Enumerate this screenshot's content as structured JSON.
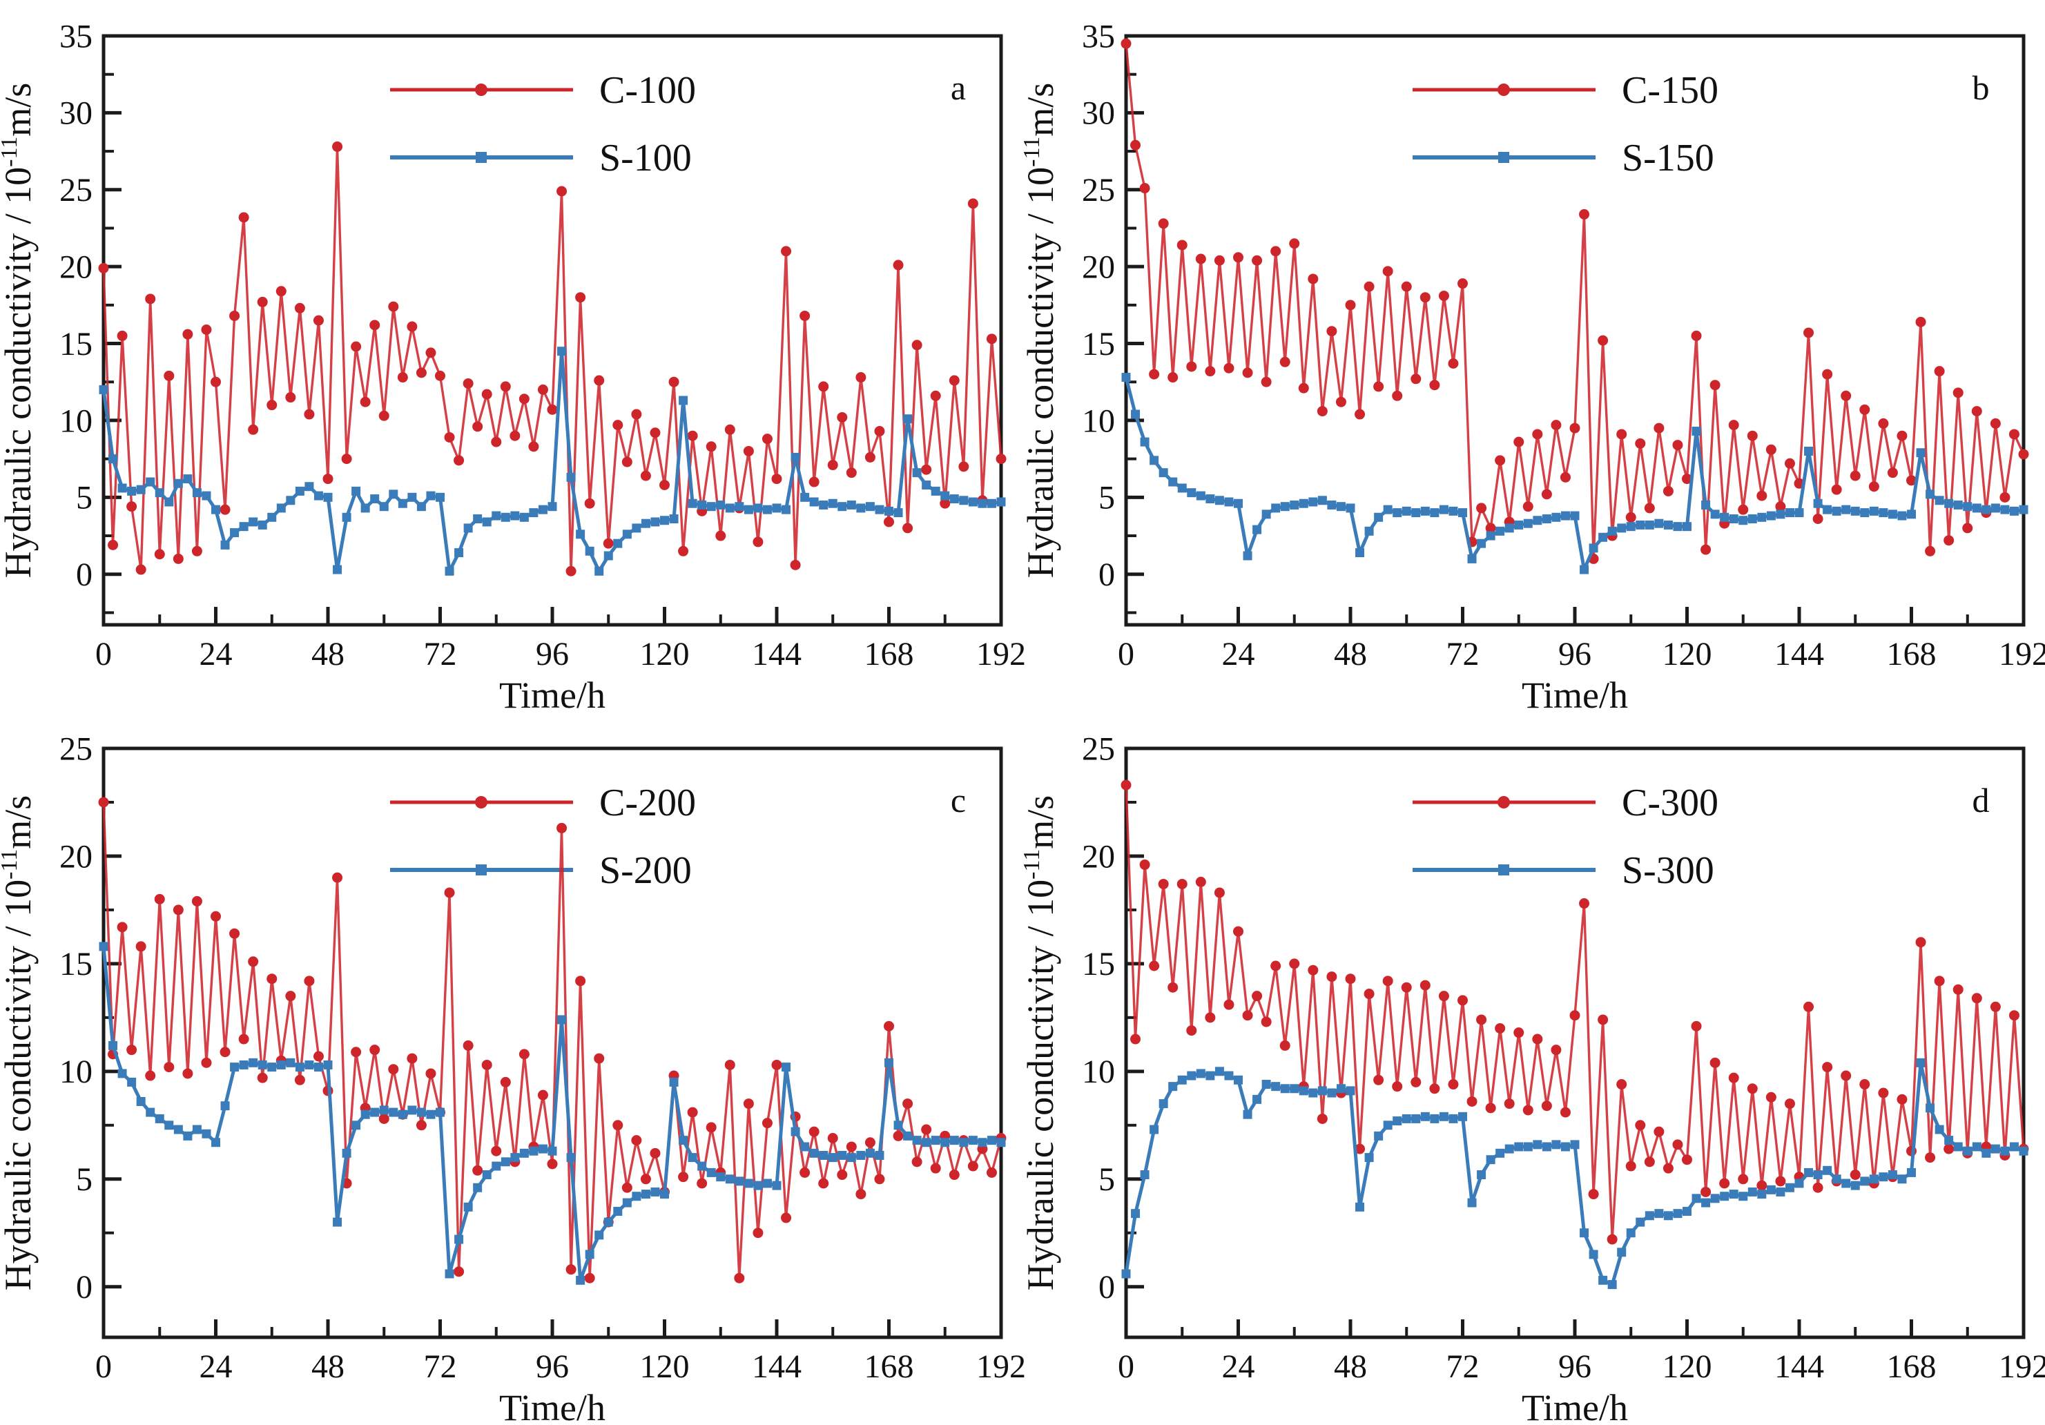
{
  "figure": {
    "xlabel": "Time/h",
    "ylabel_prefix": "Hydraulic conductivity / 10",
    "ylabel_superscript": "-11",
    "ylabel_suffix": "m/s",
    "colors": {
      "c_series": "#ce252b",
      "s_series": "#3a7cba",
      "axis": "#1b1b1b",
      "text": "#111111",
      "background": "#ffffff"
    },
    "x_ticks": [
      0,
      24,
      48,
      72,
      96,
      120,
      144,
      168,
      192
    ],
    "x_minor_step": 12,
    "y_minor_step": 2.5
  },
  "chart_data": [
    {
      "type": "line",
      "panel_label": "a",
      "xlabel": "Time/h",
      "xlim": [
        0,
        192
      ],
      "ylim": [
        0,
        35
      ],
      "y_ticks": [
        0,
        5,
        10,
        15,
        20,
        25,
        30,
        35
      ],
      "x_ticks": [
        0,
        24,
        48,
        72,
        96,
        120,
        144,
        168,
        192
      ],
      "legend": [
        {
          "label": "C-100",
          "color_key": "c_series"
        },
        {
          "label": "S-100",
          "color_key": "s_series"
        }
      ],
      "series": [
        {
          "name": "C-100",
          "color_key": "c_series",
          "marker": "circle",
          "x_start": 0,
          "x_step": 2,
          "values": [
            19.9,
            1.9,
            15.5,
            4.4,
            0.3,
            17.9,
            1.3,
            12.9,
            1.0,
            15.6,
            1.5,
            15.9,
            12.5,
            4.2,
            16.8,
            23.2,
            9.4,
            17.7,
            11.0,
            18.4,
            11.5,
            17.3,
            10.4,
            16.5,
            6.2,
            27.8,
            7.5,
            14.8,
            11.2,
            16.2,
            10.3,
            17.4,
            12.8,
            16.1,
            13.1,
            14.4,
            12.9,
            8.9,
            7.4,
            12.4,
            9.6,
            11.7,
            8.6,
            12.2,
            9.0,
            11.4,
            8.3,
            12.0,
            10.7,
            24.9,
            0.2,
            18.0,
            4.6,
            12.6,
            2.0,
            9.7,
            7.3,
            10.4,
            6.4,
            9.2,
            5.8,
            12.5,
            1.5,
            9.0,
            4.1,
            8.3,
            2.5,
            9.4,
            4.3,
            8.0,
            2.1,
            8.8,
            6.2,
            21.0,
            0.6,
            16.8,
            6.0,
            12.2,
            7.1,
            10.2,
            6.6,
            12.8,
            7.6,
            9.3,
            3.4,
            20.1,
            3.0,
            14.9,
            6.8,
            11.6,
            4.6,
            12.6,
            7.0,
            24.1,
            4.8,
            15.3,
            7.5
          ]
        },
        {
          "name": "S-100",
          "color_key": "s_series",
          "marker": "square",
          "x_start": 0,
          "x_step": 2,
          "values": [
            12.0,
            7.5,
            5.6,
            5.4,
            5.5,
            6.0,
            5.3,
            4.7,
            5.9,
            6.2,
            5.3,
            5.1,
            4.2,
            1.9,
            2.7,
            3.1,
            3.4,
            3.2,
            3.7,
            4.3,
            4.8,
            5.4,
            5.7,
            5.1,
            5.0,
            0.3,
            3.7,
            5.4,
            4.3,
            4.9,
            4.4,
            5.2,
            4.6,
            5.0,
            4.4,
            5.1,
            5.0,
            0.2,
            1.4,
            3.0,
            3.6,
            3.4,
            3.8,
            3.7,
            3.8,
            3.7,
            4.0,
            4.2,
            4.4,
            14.5,
            6.3,
            2.6,
            1.5,
            0.2,
            1.2,
            2.0,
            2.6,
            3.0,
            3.3,
            3.4,
            3.5,
            3.6,
            11.3,
            4.6,
            4.5,
            4.4,
            4.5,
            4.3,
            4.4,
            4.2,
            4.3,
            4.2,
            4.3,
            4.2,
            7.6,
            5.0,
            4.7,
            4.5,
            4.6,
            4.4,
            4.5,
            4.3,
            4.4,
            4.2,
            4.1,
            4.0,
            10.1,
            6.6,
            5.8,
            5.4,
            5.1,
            4.9,
            4.8,
            4.7,
            4.6,
            4.6,
            4.7
          ]
        }
      ]
    },
    {
      "type": "line",
      "panel_label": "b",
      "xlabel": "Time/h",
      "xlim": [
        0,
        192
      ],
      "ylim": [
        0,
        35
      ],
      "y_ticks": [
        0,
        5,
        10,
        15,
        20,
        25,
        30,
        35
      ],
      "x_ticks": [
        0,
        24,
        48,
        72,
        96,
        120,
        144,
        168,
        192
      ],
      "legend": [
        {
          "label": "C-150",
          "color_key": "c_series"
        },
        {
          "label": "S-150",
          "color_key": "s_series"
        }
      ],
      "series": [
        {
          "name": "C-150",
          "color_key": "c_series",
          "marker": "circle",
          "x_start": 0,
          "x_step": 2,
          "values": [
            34.5,
            27.9,
            25.1,
            13.0,
            22.8,
            12.8,
            21.4,
            13.5,
            20.5,
            13.2,
            20.4,
            13.4,
            20.6,
            13.1,
            20.4,
            12.5,
            21.0,
            13.8,
            21.5,
            12.1,
            19.2,
            10.6,
            15.8,
            11.2,
            17.5,
            10.4,
            18.7,
            12.2,
            19.7,
            11.6,
            18.7,
            12.7,
            18.0,
            12.3,
            18.1,
            13.7,
            18.9,
            2.1,
            4.3,
            3.0,
            7.4,
            3.4,
            8.6,
            4.4,
            9.1,
            5.2,
            9.7,
            6.3,
            9.5,
            23.4,
            1.0,
            15.2,
            2.5,
            9.1,
            3.7,
            8.5,
            4.3,
            9.5,
            5.4,
            8.4,
            6.2,
            15.5,
            1.6,
            12.3,
            3.3,
            9.7,
            4.2,
            9.0,
            5.1,
            8.1,
            4.4,
            7.2,
            5.9,
            15.7,
            3.6,
            13.0,
            5.5,
            11.6,
            6.4,
            10.7,
            5.7,
            9.8,
            6.6,
            9.0,
            6.1,
            16.4,
            1.5,
            13.2,
            2.2,
            11.8,
            3.0,
            10.6,
            4.0,
            9.8,
            5.0,
            9.1,
            7.8
          ]
        },
        {
          "name": "S-150",
          "color_key": "s_series",
          "marker": "square",
          "x_start": 0,
          "x_step": 2,
          "values": [
            12.8,
            10.4,
            8.6,
            7.4,
            6.6,
            6.0,
            5.6,
            5.3,
            5.1,
            4.9,
            4.8,
            4.7,
            4.6,
            1.2,
            2.9,
            3.9,
            4.3,
            4.4,
            4.5,
            4.6,
            4.7,
            4.8,
            4.5,
            4.4,
            4.3,
            1.4,
            2.8,
            3.7,
            4.2,
            4.0,
            4.1,
            4.0,
            4.1,
            4.0,
            4.2,
            4.1,
            4.0,
            1.0,
            2.0,
            2.5,
            2.8,
            3.0,
            3.2,
            3.3,
            3.5,
            3.6,
            3.7,
            3.8,
            3.8,
            0.3,
            1.7,
            2.4,
            2.8,
            3.0,
            3.1,
            3.2,
            3.2,
            3.3,
            3.2,
            3.1,
            3.1,
            9.3,
            4.5,
            3.9,
            3.7,
            3.6,
            3.5,
            3.6,
            3.7,
            3.8,
            3.9,
            4.0,
            4.0,
            8.0,
            4.6,
            4.2,
            4.1,
            4.2,
            4.1,
            4.0,
            4.1,
            4.0,
            3.9,
            3.8,
            3.9,
            7.9,
            5.2,
            4.8,
            4.6,
            4.5,
            4.4,
            4.3,
            4.2,
            4.3,
            4.2,
            4.1,
            4.2
          ]
        }
      ]
    },
    {
      "type": "line",
      "panel_label": "c",
      "xlabel": "Time/h",
      "xlim": [
        0,
        192
      ],
      "ylim": [
        0,
        25
      ],
      "y_ticks": [
        0,
        5,
        10,
        15,
        20,
        25
      ],
      "x_ticks": [
        0,
        24,
        48,
        72,
        96,
        120,
        144,
        168,
        192
      ],
      "legend": [
        {
          "label": "C-200",
          "color_key": "c_series"
        },
        {
          "label": "S-200",
          "color_key": "s_series"
        }
      ],
      "series": [
        {
          "name": "C-200",
          "color_key": "c_series",
          "marker": "circle",
          "x_start": 0,
          "x_step": 2,
          "values": [
            22.5,
            10.8,
            16.7,
            11.0,
            15.8,
            9.8,
            18.0,
            10.2,
            17.5,
            9.9,
            17.9,
            10.4,
            17.2,
            10.9,
            16.4,
            11.5,
            15.1,
            9.7,
            14.3,
            10.5,
            13.5,
            9.6,
            14.2,
            10.7,
            9.1,
            19.0,
            4.8,
            10.9,
            8.3,
            11.0,
            7.8,
            10.1,
            8.0,
            10.6,
            7.5,
            9.9,
            8.1,
            18.3,
            0.7,
            11.2,
            5.4,
            10.3,
            6.3,
            9.5,
            5.8,
            10.8,
            6.5,
            8.9,
            5.7,
            21.3,
            0.8,
            14.2,
            0.4,
            10.6,
            3.0,
            7.5,
            4.6,
            6.8,
            5.0,
            6.2,
            4.4,
            9.8,
            5.1,
            8.1,
            4.8,
            7.4,
            5.3,
            10.3,
            0.4,
            8.5,
            2.5,
            7.6,
            10.3,
            3.2,
            7.9,
            5.3,
            7.2,
            4.8,
            6.9,
            5.2,
            6.5,
            4.3,
            6.7,
            5.0,
            12.1,
            7.0,
            8.5,
            5.8,
            7.3,
            5.5,
            7.0,
            5.2,
            6.8,
            5.6,
            6.4,
            5.3,
            6.9
          ]
        },
        {
          "name": "S-200",
          "color_key": "s_series",
          "marker": "square",
          "x_start": 0,
          "x_step": 2,
          "values": [
            15.8,
            11.2,
            9.9,
            9.5,
            8.6,
            8.1,
            7.8,
            7.5,
            7.3,
            7.0,
            7.3,
            7.1,
            6.7,
            8.4,
            10.2,
            10.3,
            10.4,
            10.3,
            10.2,
            10.3,
            10.4,
            10.2,
            10.3,
            10.2,
            10.3,
            3.0,
            6.2,
            7.5,
            8.0,
            8.1,
            8.2,
            8.1,
            8.0,
            8.2,
            8.1,
            8.0,
            8.1,
            0.6,
            2.2,
            3.7,
            4.6,
            5.2,
            5.6,
            5.8,
            6.0,
            6.2,
            6.3,
            6.4,
            6.3,
            12.4,
            6.0,
            0.3,
            1.5,
            2.4,
            3.0,
            3.5,
            3.9,
            4.2,
            4.3,
            4.4,
            4.3,
            9.5,
            6.8,
            6.0,
            5.6,
            5.3,
            5.1,
            5.0,
            4.9,
            4.8,
            4.7,
            4.8,
            4.7,
            10.2,
            7.2,
            6.5,
            6.2,
            6.1,
            6.0,
            6.1,
            6.0,
            6.1,
            6.2,
            6.1,
            10.4,
            7.5,
            7.0,
            6.8,
            6.7,
            6.8,
            6.7,
            6.8,
            6.7,
            6.8,
            6.7,
            6.8,
            6.7
          ]
        }
      ]
    },
    {
      "type": "line",
      "panel_label": "d",
      "xlabel": "Time/h",
      "xlim": [
        0,
        192
      ],
      "ylim": [
        0,
        25
      ],
      "y_ticks": [
        0,
        5,
        10,
        15,
        20,
        25
      ],
      "x_ticks": [
        0,
        24,
        48,
        72,
        96,
        120,
        144,
        168,
        192
      ],
      "legend": [
        {
          "label": "C-300",
          "color_key": "c_series"
        },
        {
          "label": "S-300",
          "color_key": "s_series"
        }
      ],
      "series": [
        {
          "name": "C-300",
          "color_key": "c_series",
          "marker": "circle",
          "x_start": 0,
          "x_step": 2,
          "values": [
            23.3,
            11.5,
            19.6,
            14.9,
            18.7,
            13.9,
            18.7,
            11.9,
            18.8,
            12.5,
            18.3,
            13.1,
            16.5,
            12.6,
            13.5,
            12.3,
            14.9,
            11.2,
            15.0,
            9.3,
            14.7,
            7.8,
            14.4,
            9.0,
            14.3,
            6.4,
            13.6,
            9.6,
            14.2,
            9.3,
            13.9,
            9.5,
            14.0,
            9.2,
            13.5,
            9.4,
            13.3,
            8.6,
            12.4,
            8.3,
            12.0,
            8.5,
            11.8,
            8.2,
            11.5,
            8.4,
            11.0,
            8.1,
            12.6,
            17.8,
            4.3,
            12.4,
            2.2,
            9.4,
            5.6,
            7.5,
            5.8,
            7.2,
            5.5,
            6.6,
            5.9,
            12.1,
            4.4,
            10.4,
            4.8,
            9.7,
            5.0,
            9.2,
            4.7,
            8.8,
            4.9,
            8.5,
            5.1,
            13.0,
            4.6,
            10.2,
            4.9,
            9.8,
            5.2,
            9.4,
            4.8,
            9.0,
            5.1,
            8.7,
            6.3,
            16.0,
            6.0,
            14.2,
            6.4,
            13.8,
            6.2,
            13.4,
            6.5,
            13.0,
            6.1,
            12.6,
            6.4
          ]
        },
        {
          "name": "S-300",
          "color_key": "s_series",
          "marker": "square",
          "x_start": 0,
          "x_step": 2,
          "values": [
            0.6,
            3.4,
            5.2,
            7.3,
            8.5,
            9.3,
            9.6,
            9.8,
            9.9,
            9.8,
            10.0,
            9.8,
            9.6,
            8.0,
            8.7,
            9.4,
            9.3,
            9.2,
            9.2,
            9.1,
            9.0,
            9.1,
            9.0,
            9.2,
            9.1,
            3.7,
            6.0,
            7.0,
            7.5,
            7.7,
            7.8,
            7.8,
            7.9,
            7.8,
            7.9,
            7.8,
            7.9,
            3.9,
            5.2,
            5.9,
            6.2,
            6.4,
            6.5,
            6.5,
            6.6,
            6.5,
            6.6,
            6.5,
            6.6,
            2.5,
            1.5,
            0.3,
            0.1,
            1.6,
            2.5,
            3.0,
            3.3,
            3.4,
            3.3,
            3.4,
            3.5,
            4.1,
            3.9,
            4.1,
            4.2,
            4.3,
            4.2,
            4.4,
            4.3,
            4.5,
            4.4,
            4.6,
            4.8,
            5.3,
            5.2,
            5.4,
            5.0,
            4.8,
            4.7,
            4.9,
            5.0,
            5.1,
            5.2,
            5.0,
            5.3,
            10.4,
            8.3,
            7.3,
            6.8,
            6.5,
            6.3,
            6.5,
            6.2,
            6.4,
            6.3,
            6.5,
            6.3
          ]
        }
      ]
    }
  ]
}
